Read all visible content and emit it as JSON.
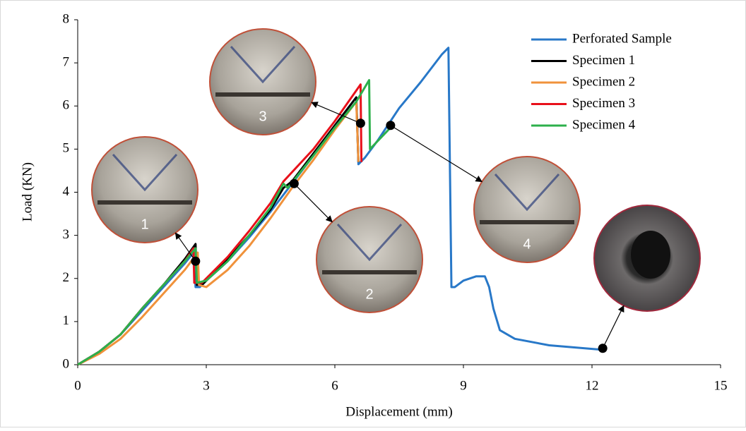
{
  "chart_data": {
    "type": "line",
    "x_label": "Displacement (mm)",
    "y_label": "Load (KN)",
    "xlim": [
      0,
      15
    ],
    "xticks": [
      0,
      3,
      6,
      9,
      12,
      15
    ],
    "ylim": [
      0,
      8
    ],
    "yticks": [
      0,
      1,
      2,
      3,
      4,
      5,
      6,
      7,
      8
    ],
    "grid": false,
    "legend": "upper right",
    "series": [
      {
        "name": "Perforated Sample",
        "color": "#2878c8",
        "x": [
          0,
          0.5,
          1,
          1.5,
          2,
          2.5,
          2.7,
          2.75,
          2.85,
          3,
          3.5,
          4,
          4.5,
          5,
          5.5,
          6,
          6.5,
          6.55,
          6.7,
          7,
          7.5,
          8,
          8.5,
          8.65,
          8.72,
          8.8,
          9,
          9.3,
          9.5,
          9.6,
          9.7,
          9.85,
          10.2,
          11,
          12.2
        ],
        "values": [
          0,
          0.3,
          0.7,
          1.25,
          1.8,
          2.35,
          2.6,
          1.8,
          1.8,
          1.95,
          2.4,
          2.95,
          3.55,
          4.2,
          4.85,
          5.55,
          6.2,
          4.65,
          4.8,
          5.2,
          5.95,
          6.55,
          7.2,
          7.35,
          1.8,
          1.8,
          1.95,
          2.05,
          2.05,
          1.8,
          1.3,
          0.8,
          0.6,
          0.45,
          0.35
        ]
      },
      {
        "name": "Specimen 1",
        "color": "#000000",
        "x": [
          0,
          0.5,
          1,
          1.5,
          2,
          2.5,
          2.75,
          2.78,
          2.9,
          3,
          3.5,
          4,
          4.5,
          4.8,
          5,
          5.5,
          6,
          6.5,
          6.55
        ],
        "values": [
          0,
          0.3,
          0.7,
          1.3,
          1.85,
          2.45,
          2.8,
          1.85,
          1.85,
          1.95,
          2.45,
          3,
          3.6,
          4.1,
          4.25,
          4.9,
          5.55,
          6.2,
          4.7
        ]
      },
      {
        "name": "Specimen 2",
        "color": "#f0923b",
        "x": [
          0,
          0.5,
          1,
          1.5,
          2,
          2.5,
          2.8,
          2.83,
          3,
          3.5,
          4,
          4.5,
          5,
          5.5,
          6,
          6.5,
          6.55
        ],
        "values": [
          0,
          0.25,
          0.6,
          1.1,
          1.65,
          2.2,
          2.6,
          1.85,
          1.8,
          2.2,
          2.75,
          3.4,
          4.1,
          4.75,
          5.45,
          6.1,
          4.7
        ]
      },
      {
        "name": "Specimen 3",
        "color": "#e8101a",
        "x": [
          0,
          0.5,
          1,
          1.5,
          2,
          2.5,
          2.7,
          2.72,
          2.9,
          3.5,
          4,
          4.5,
          4.8,
          5.5,
          6,
          6.6,
          6.62
        ],
        "values": [
          0,
          0.3,
          0.7,
          1.3,
          1.85,
          2.4,
          2.7,
          1.9,
          1.9,
          2.5,
          3.1,
          3.75,
          4.25,
          5,
          5.65,
          6.5,
          4.7
        ]
      },
      {
        "name": "Specimen 4",
        "color": "#2db04b",
        "x": [
          0,
          0.5,
          1,
          1.5,
          2,
          2.5,
          2.75,
          2.78,
          3,
          3.5,
          4,
          4.5,
          4.8,
          4.9,
          5.5,
          6,
          6.5,
          6.8,
          6.82,
          7.3
        ],
        "values": [
          0,
          0.3,
          0.7,
          1.3,
          1.85,
          2.4,
          2.7,
          1.9,
          1.95,
          2.4,
          3,
          3.65,
          4.2,
          4.1,
          4.85,
          5.5,
          6.1,
          6.6,
          5,
          5.5
        ]
      }
    ],
    "annotations": [
      {
        "text": "1",
        "x": 2.75,
        "y": 2.4
      },
      {
        "text": "2",
        "x": 5.05,
        "y": 4.2
      },
      {
        "text": "3",
        "x": 6.6,
        "y": 5.6
      },
      {
        "text": "4",
        "x": 7.3,
        "y": 5.55
      },
      {
        "x": 12.25,
        "y": 0.38
      }
    ]
  }
}
